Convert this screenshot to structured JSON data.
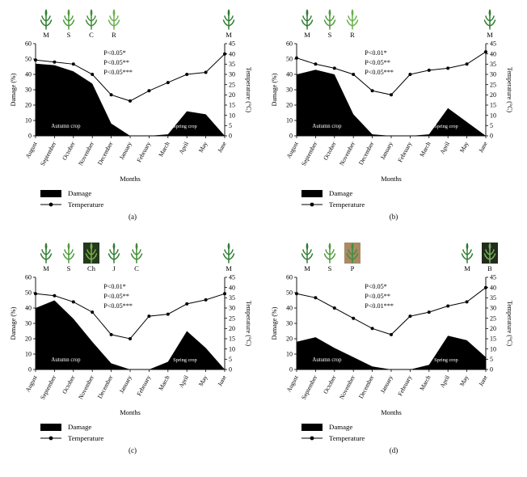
{
  "figure": {
    "legend": {
      "damage_label": "Damage",
      "temperature_label": "Temperature"
    },
    "panels": [
      {
        "label": "(a)",
        "icons_left": [
          {
            "letter": "M",
            "icon": "maize-plant-icon",
            "color": "#2e7d32",
            "bg": ""
          },
          {
            "letter": "S",
            "icon": "sorghum-plant-icon",
            "color": "#4f9a3c",
            "bg": ""
          },
          {
            "letter": "C",
            "icon": "cotton-plant-icon",
            "color": "#3f8b37",
            "bg": ""
          },
          {
            "letter": "R",
            "icon": "rice-plant-icon",
            "color": "#6ab04c",
            "bg": ""
          }
        ],
        "icons_right": [
          {
            "letter": "M",
            "icon": "maize-plant-icon",
            "color": "#2e7d32",
            "bg": ""
          }
        ]
      },
      {
        "label": "(b)",
        "icons_left": [
          {
            "letter": "M",
            "icon": "maize-plant-icon",
            "color": "#2e7d32",
            "bg": ""
          },
          {
            "letter": "S",
            "icon": "sorghum-plant-icon",
            "color": "#4f9a3c",
            "bg": ""
          },
          {
            "letter": "R",
            "icon": "rice-plant-icon",
            "color": "#6ab04c",
            "bg": ""
          }
        ],
        "icons_right": [
          {
            "letter": "M",
            "icon": "maize-plant-icon",
            "color": "#2e7d32",
            "bg": ""
          }
        ]
      },
      {
        "label": "(c)",
        "icons_left": [
          {
            "letter": "M",
            "icon": "maize-plant-icon",
            "color": "#2e7d32",
            "bg": ""
          },
          {
            "letter": "S",
            "icon": "sorghum-plant-icon",
            "color": "#4f9a3c",
            "bg": ""
          },
          {
            "letter": "Ch",
            "icon": "chickpea-plant-icon",
            "color": "#7cb342",
            "bg": "#24391f"
          },
          {
            "letter": "J",
            "icon": "jute-plant-icon",
            "color": "#2f7d32",
            "bg": ""
          },
          {
            "letter": "C",
            "icon": "cotton-plant-icon",
            "color": "#3f8b37",
            "bg": ""
          }
        ],
        "icons_right": [
          {
            "letter": "M",
            "icon": "maize-plant-icon",
            "color": "#2e7d32",
            "bg": ""
          }
        ]
      },
      {
        "label": "(d)",
        "icons_left": [
          {
            "letter": "M",
            "icon": "maize-plant-icon",
            "color": "#2e7d32",
            "bg": ""
          },
          {
            "letter": "S",
            "icon": "sorghum-plant-icon",
            "color": "#4f9a3c",
            "bg": ""
          },
          {
            "letter": "P",
            "icon": "pigeonpea-plant-icon",
            "color": "#3c8f43",
            "bg": "#a98a62"
          }
        ],
        "icons_right": [
          {
            "letter": "M",
            "icon": "maize-plant-icon",
            "color": "#2e7d32",
            "bg": ""
          },
          {
            "letter": "B",
            "icon": "brinjal-plant-icon",
            "color": "#79b55a",
            "bg": "#222c1c"
          }
        ]
      }
    ]
  },
  "chart_data": [
    {
      "type": "area",
      "panel": "(a)",
      "x": [
        "August",
        "September",
        "October",
        "November",
        "December",
        "January",
        "February",
        "March",
        "April",
        "May",
        "June"
      ],
      "series": [
        {
          "name": "Damage",
          "type": "area",
          "axis": "left",
          "color": "#000000",
          "values": [
            47,
            46,
            42,
            34,
            8,
            0,
            0,
            1,
            16,
            14,
            0
          ]
        },
        {
          "name": "Temperature",
          "type": "line",
          "axis": "right",
          "color": "#000000",
          "values": [
            37,
            36,
            35,
            30,
            20,
            17,
            22,
            26,
            30,
            31,
            40
          ]
        }
      ],
      "left_axis": {
        "label": "Damage (%)",
        "min": 0,
        "max": 60,
        "ticks": [
          0,
          10,
          20,
          30,
          40,
          50,
          60
        ]
      },
      "right_axis": {
        "label": "Temperature (°C)",
        "min": 0,
        "max": 45,
        "ticks": [
          0,
          5,
          10,
          15,
          20,
          25,
          30,
          35,
          40,
          45
        ]
      },
      "annotations": [
        "P<0.05*",
        "P<0.05**",
        "P<0.05***"
      ],
      "area_labels": [
        "Autumn crop",
        "Spring crop"
      ],
      "xlabel": "Months",
      "legend_position": "bottom-left",
      "grid": false
    },
    {
      "type": "area",
      "panel": "(b)",
      "x": [
        "August",
        "September",
        "October",
        "November",
        "December",
        "January",
        "February",
        "March",
        "April",
        "May",
        "June"
      ],
      "series": [
        {
          "name": "Damage",
          "type": "area",
          "axis": "left",
          "color": "#000000",
          "values": [
            40,
            43,
            40,
            14,
            1,
            0,
            0,
            1,
            18,
            9,
            0
          ]
        },
        {
          "name": "Temperature",
          "type": "line",
          "axis": "right",
          "color": "#000000",
          "values": [
            38,
            35,
            33,
            30,
            22,
            20,
            30,
            32,
            33,
            35,
            41
          ]
        }
      ],
      "left_axis": {
        "label": "Damage (%)",
        "min": 0,
        "max": 60,
        "ticks": [
          0,
          10,
          20,
          30,
          40,
          50,
          60
        ]
      },
      "right_axis": {
        "label": "Temperature (°C)",
        "min": 0,
        "max": 45,
        "ticks": [
          0,
          5,
          10,
          15,
          20,
          25,
          30,
          35,
          40,
          45
        ]
      },
      "annotations": [
        "P<0.01*",
        "P<0.05**",
        "P<0.05***"
      ],
      "area_labels": [
        "Autumn crop",
        "Spring crop"
      ],
      "xlabel": "Months",
      "legend_position": "bottom-left",
      "grid": false
    },
    {
      "type": "area",
      "panel": "(c)",
      "x": [
        "August",
        "September",
        "October",
        "November",
        "December",
        "January",
        "February",
        "March",
        "April",
        "May",
        "June"
      ],
      "series": [
        {
          "name": "Damage",
          "type": "area",
          "axis": "left",
          "color": "#000000",
          "values": [
            40,
            45,
            33,
            18,
            4,
            0,
            0,
            5,
            25,
            14,
            0
          ]
        },
        {
          "name": "Temperature",
          "type": "line",
          "axis": "right",
          "color": "#000000",
          "values": [
            37,
            36,
            33,
            28,
            17,
            15,
            26,
            27,
            32,
            34,
            37
          ]
        }
      ],
      "left_axis": {
        "label": "Damage (%)",
        "min": 0,
        "max": 60,
        "ticks": [
          0,
          10,
          20,
          30,
          40,
          50,
          60
        ]
      },
      "right_axis": {
        "label": "Temperature (°C)",
        "min": 0,
        "max": 45,
        "ticks": [
          0,
          5,
          10,
          15,
          20,
          25,
          30,
          35,
          40,
          45
        ]
      },
      "annotations": [
        "P<0.01*",
        "P<0.05**",
        "P<0.05***"
      ],
      "area_labels": [
        "Autumn crop",
        "Spring crop"
      ],
      "xlabel": "Months",
      "legend_position": "bottom-left",
      "grid": false
    },
    {
      "type": "area",
      "panel": "(d)",
      "x": [
        "August",
        "September",
        "October",
        "November",
        "December",
        "January",
        "February",
        "March",
        "April",
        "May",
        "June"
      ],
      "series": [
        {
          "name": "Damage",
          "type": "area",
          "axis": "left",
          "color": "#000000",
          "values": [
            18,
            21,
            14,
            8,
            2,
            0,
            0,
            3,
            22,
            19,
            8
          ]
        },
        {
          "name": "Temperature",
          "type": "line",
          "axis": "right",
          "color": "#000000",
          "values": [
            37,
            35,
            30,
            25,
            20,
            17,
            26,
            28,
            31,
            33,
            40
          ]
        }
      ],
      "left_axis": {
        "label": "Damage (%)",
        "min": 0,
        "max": 60,
        "ticks": [
          0,
          10,
          20,
          30,
          40,
          50,
          60
        ]
      },
      "right_axis": {
        "label": "Temperature (°C)",
        "min": 0,
        "max": 45,
        "ticks": [
          0,
          5,
          10,
          15,
          20,
          25,
          30,
          35,
          40,
          45
        ]
      },
      "annotations": [
        "P<0.05*",
        "P<0.05**",
        "P<0.01***"
      ],
      "area_labels": [
        "Autumn crop",
        "Spring crop"
      ],
      "xlabel": "Months",
      "legend_position": "bottom-left",
      "grid": false
    }
  ]
}
